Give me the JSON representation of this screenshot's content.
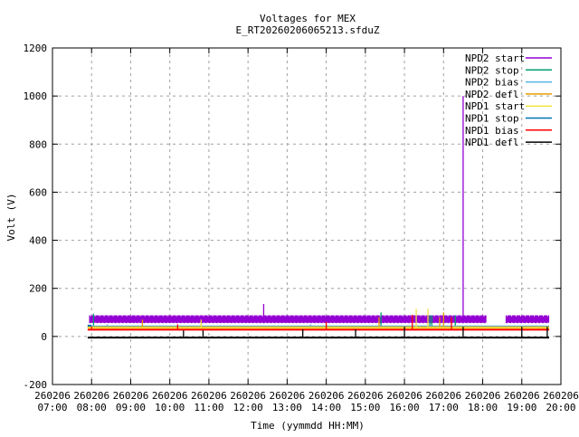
{
  "chart_data": {
    "type": "line",
    "title": "Voltages for MEX",
    "subtitle": "E_RT20260206065213.sfduZ",
    "xlabel": "Time (yymmdd HH:MM)",
    "ylabel": "Volt (V)",
    "xlim_hours": [
      7,
      20
    ],
    "ylim": [
      -200,
      1200
    ],
    "yticks": [
      "-200",
      "0",
      "200",
      "400",
      "600",
      "800",
      "1000",
      "1200"
    ],
    "ytick_values": [
      -200,
      0,
      200,
      400,
      600,
      800,
      1000,
      1200
    ],
    "xticks": [
      {
        "date": "260206",
        "time": "07:00",
        "h": 7
      },
      {
        "date": "260206",
        "time": "08:00",
        "h": 8
      },
      {
        "date": "260206",
        "time": "09:00",
        "h": 9
      },
      {
        "date": "260206",
        "time": "10:00",
        "h": 10
      },
      {
        "date": "260206",
        "time": "11:00",
        "h": 11
      },
      {
        "date": "260206",
        "time": "12:00",
        "h": 12
      },
      {
        "date": "260206",
        "time": "13:00",
        "h": 13
      },
      {
        "date": "260206",
        "time": "14:00",
        "h": 14
      },
      {
        "date": "260206",
        "time": "15:00",
        "h": 15
      },
      {
        "date": "260206",
        "time": "16:00",
        "h": 16
      },
      {
        "date": "260206",
        "time": "17:00",
        "h": 17
      },
      {
        "date": "260206",
        "time": "18:00",
        "h": 18
      },
      {
        "date": "260206",
        "time": "19:00",
        "h": 19
      },
      {
        "date": "260206",
        "time": "20:00",
        "h": 20
      }
    ],
    "grid": true,
    "legend_position": "top-right",
    "series": [
      {
        "name": "NPD2 start",
        "color": "#9400d3",
        "band": [
          55,
          88
        ],
        "segments": [
          [
            7.95,
            18.1
          ],
          [
            18.6,
            19.7
          ]
        ],
        "spikes": [
          [
            17.5,
            1000
          ],
          [
            12.4,
            135
          ]
        ]
      },
      {
        "name": "NPD2 stop",
        "color": "#009e73",
        "level": 40,
        "segments": [
          [
            7.9,
            19.7
          ]
        ],
        "spikes": [
          [
            8.05,
            95
          ],
          [
            16.65,
            88
          ],
          [
            16.7,
            88
          ],
          [
            17.3,
            88
          ],
          [
            15.4,
            100
          ]
        ]
      },
      {
        "name": "NPD2 bias",
        "color": "#56b4e9",
        "level": 42,
        "segments": [
          [
            7.9,
            19.7
          ]
        ],
        "spikes": [
          [
            8.4,
            50
          ],
          [
            13.6,
            50
          ]
        ]
      },
      {
        "name": "NPD2 defl",
        "color": "#e69f00",
        "level": 38,
        "segments": [
          [
            7.9,
            19.7
          ]
        ],
        "spikes": [
          [
            9.3,
            70
          ],
          [
            10.8,
            60
          ],
          [
            15.35,
            80
          ],
          [
            16.9,
            80
          ],
          [
            17.0,
            100
          ]
        ]
      },
      {
        "name": "NPD1 start",
        "color": "#f0e442",
        "level": 35,
        "segments": [
          [
            7.9,
            19.7
          ]
        ],
        "spikes": [
          [
            10.8,
            70
          ],
          [
            16.3,
            115
          ],
          [
            16.6,
            115
          ]
        ]
      },
      {
        "name": "NPD1 stop",
        "color": "#0072b2",
        "level": 45,
        "segments": [
          [
            7.9,
            8.0
          ]
        ],
        "spikes": []
      },
      {
        "name": "NPD1 bias",
        "color": "#ff0000",
        "level": 28,
        "segments": [
          [
            7.9,
            19.7
          ]
        ],
        "spikes": [
          [
            8.0,
            40
          ],
          [
            10.2,
            50
          ],
          [
            14.0,
            60
          ],
          [
            16.2,
            90
          ],
          [
            17.2,
            80
          ]
        ]
      },
      {
        "name": "NPD1 defl",
        "color": "#000000",
        "level": -5,
        "segments": [
          [
            7.9,
            19.7
          ]
        ],
        "spikes": [
          [
            10.35,
            25
          ],
          [
            10.85,
            25
          ],
          [
            13.4,
            30
          ],
          [
            14.75,
            30
          ],
          [
            16.0,
            40
          ],
          [
            17.5,
            40
          ],
          [
            19.0,
            40
          ],
          [
            19.65,
            40
          ]
        ]
      }
    ]
  }
}
